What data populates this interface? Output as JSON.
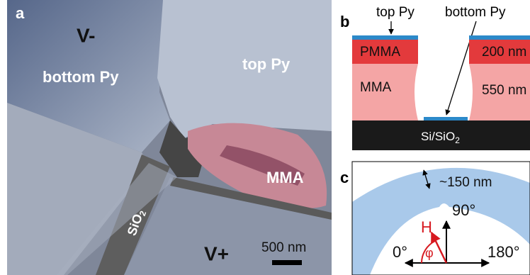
{
  "panel_a": {
    "label": "a",
    "v_minus": "V-",
    "bottom_py": "bottom Py",
    "top_py": "top Py",
    "mma": "MMA",
    "sio2": {
      "text": "SiO",
      "sub": "2"
    },
    "v_plus": "V+",
    "scale_bar": "500 nm"
  },
  "panel_b": {
    "label": "b",
    "top_py": "top Py",
    "bottom_py": "bottom Py",
    "pmma": "PMMA",
    "pmma_thickness": "200 nm",
    "mma": "MMA",
    "mma_thickness": "550 nm",
    "substrate": {
      "text": "Si/SiO",
      "sub": "2"
    }
  },
  "panel_c": {
    "label": "c",
    "width": "~150 nm",
    "angle_90": "90°",
    "field": "H",
    "phi": "φ",
    "angle_0": "0°",
    "angle_180": "180°"
  }
}
